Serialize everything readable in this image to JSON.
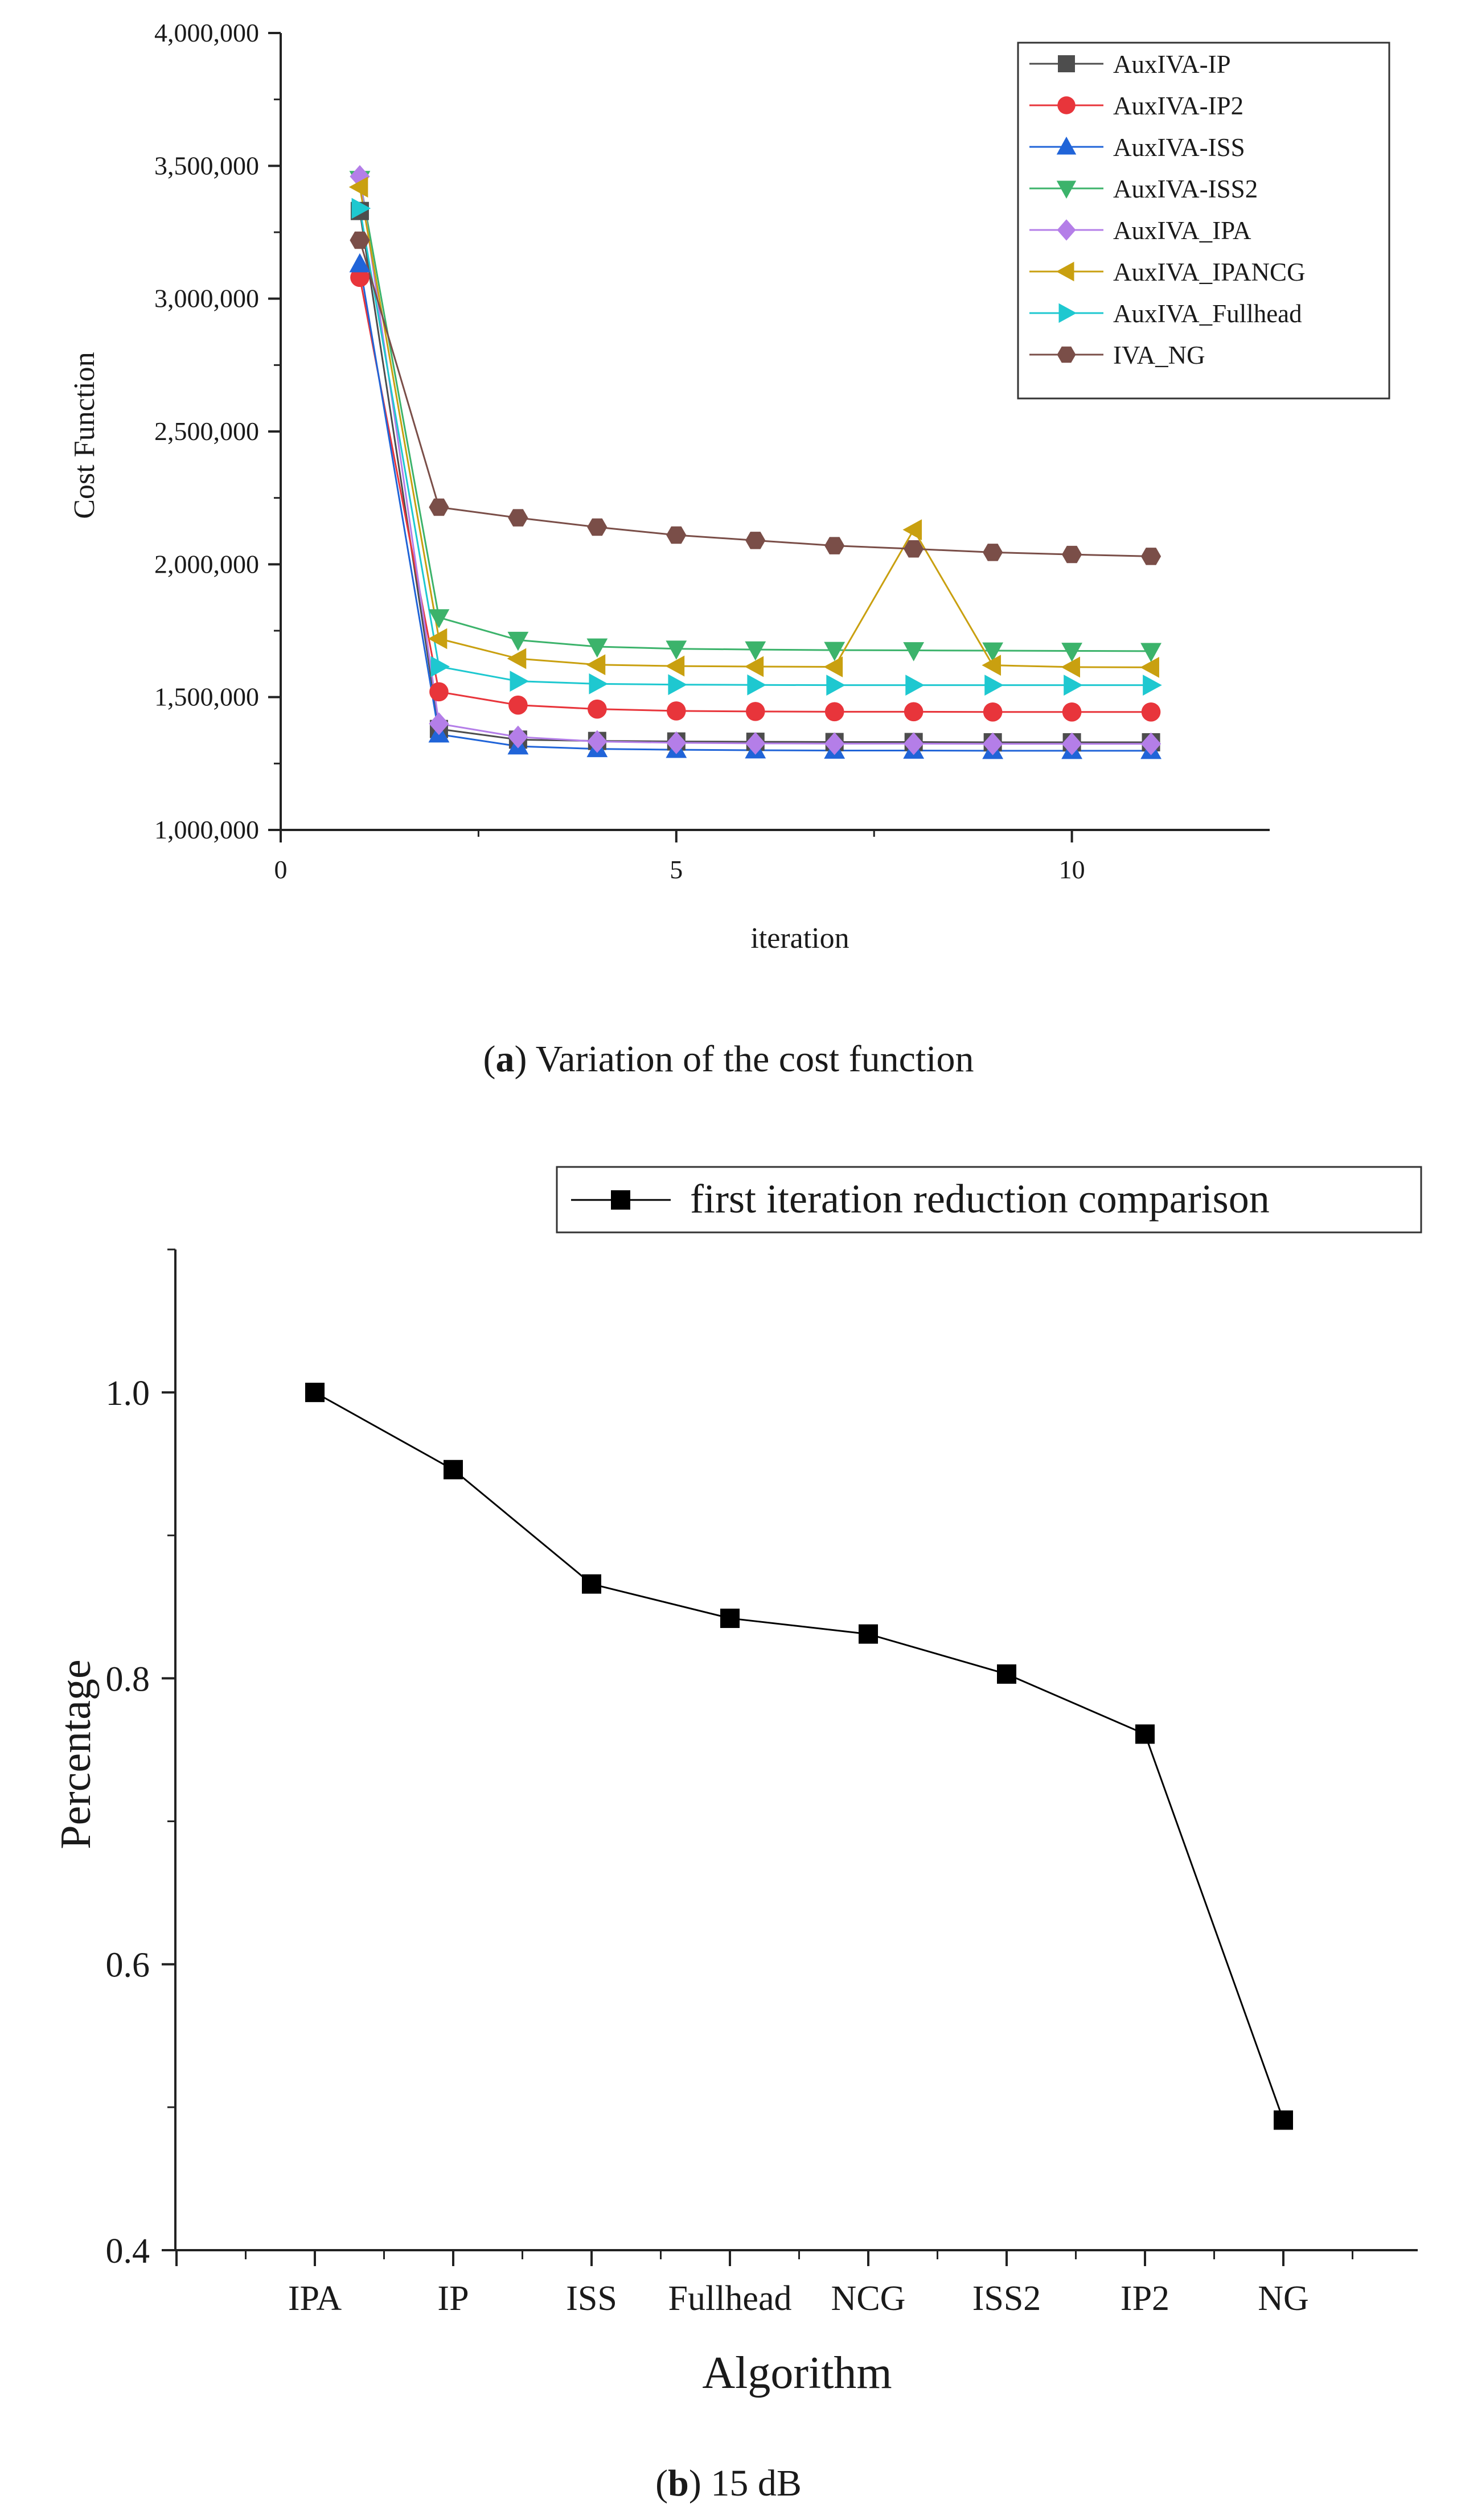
{
  "chart_data": [
    {
      "type": "line",
      "title": "",
      "xlabel": "iteration",
      "ylabel": "Cost Function",
      "xlim": [
        0,
        12.5
      ],
      "ylim": [
        1000000,
        4000000
      ],
      "x_ticks": [
        0,
        5,
        10
      ],
      "x_tick_labels": [
        "0",
        "5",
        "10"
      ],
      "y_ticks": [
        1000000,
        1500000,
        2000000,
        2500000,
        3000000,
        3500000,
        4000000
      ],
      "y_tick_labels": [
        "1,000,000",
        "1,500,000",
        "2,000,000",
        "2,500,000",
        "3,000,000",
        "3,500,000",
        "4,000,000"
      ],
      "legend_position": "top-right",
      "x": [
        1,
        2,
        3,
        4,
        5,
        6,
        7,
        8,
        9,
        10,
        11
      ],
      "series": [
        {
          "name": "AuxIVA-IP",
          "color": "#4d4d4d",
          "marker": "square",
          "values": [
            3330000,
            1380000,
            1340000,
            1335000,
            1333000,
            1332000,
            1331000,
            1331000,
            1330000,
            1330000,
            1330000
          ]
        },
        {
          "name": "AuxIVA-IP2",
          "color": "#e8353b",
          "marker": "circle",
          "values": [
            3080000,
            1520000,
            1470000,
            1455000,
            1448000,
            1446000,
            1445000,
            1445000,
            1444000,
            1444000,
            1444000
          ]
        },
        {
          "name": "AuxIVA-ISS",
          "color": "#2064d8",
          "marker": "triangle-up",
          "values": [
            3130000,
            1360000,
            1315000,
            1305000,
            1302000,
            1300000,
            1299000,
            1299000,
            1298000,
            1298000,
            1298000
          ]
        },
        {
          "name": "AuxIVA-ISS2",
          "color": "#3cb36b",
          "marker": "triangle-down",
          "values": [
            3450000,
            1800000,
            1715000,
            1690000,
            1682000,
            1679000,
            1677000,
            1676000,
            1675000,
            1674000,
            1673000
          ]
        },
        {
          "name": "AuxIVA_IPA",
          "color": "#b47ee8",
          "marker": "diamond",
          "values": [
            3460000,
            1400000,
            1350000,
            1333000,
            1328000,
            1326000,
            1325000,
            1325000,
            1324000,
            1324000,
            1324000
          ]
        },
        {
          "name": "AuxIVA_IPANCG",
          "color": "#c9a010",
          "marker": "triangle-left",
          "values": [
            3420000,
            1720000,
            1645000,
            1622000,
            1617000,
            1615000,
            1614000,
            2130000,
            1620000,
            1613000,
            1612000
          ]
        },
        {
          "name": "AuxIVA_Fullhead",
          "color": "#1ec8d0",
          "marker": "triangle-right",
          "values": [
            3340000,
            1615000,
            1560000,
            1550000,
            1547000,
            1546000,
            1545000,
            1545000,
            1545000,
            1545000,
            1545000
          ]
        },
        {
          "name": "IVA_NG",
          "color": "#7a4e48",
          "marker": "hexagon",
          "values": [
            3220000,
            2215000,
            2175000,
            2140000,
            2110000,
            2090000,
            2070000,
            2058000,
            2045000,
            2037000,
            2030000
          ]
        }
      ]
    },
    {
      "type": "line",
      "title": "",
      "xlabel": "Algorithm",
      "ylabel": "Percentage",
      "ylim": [
        0.4,
        1.1
      ],
      "y_ticks": [
        0.4,
        0.6,
        0.8,
        1.0
      ],
      "y_tick_labels": [
        "0.4",
        "0.6",
        "0.8",
        "1.0"
      ],
      "legend_position": "top-right",
      "categories": [
        "IPA",
        "IP",
        "ISS",
        "Fullhead",
        "NCG",
        "ISS2",
        "IP2",
        "NG"
      ],
      "series": [
        {
          "name": "first iteration reduction comparison",
          "color": "#000000",
          "marker": "square",
          "values": [
            1.0,
            0.946,
            0.866,
            0.842,
            0.831,
            0.803,
            0.761,
            0.491
          ]
        }
      ]
    }
  ],
  "captions": {
    "a": {
      "label": "a",
      "text": "Variation of the cost function"
    },
    "b": {
      "label": "b",
      "text": "15 dB"
    }
  }
}
